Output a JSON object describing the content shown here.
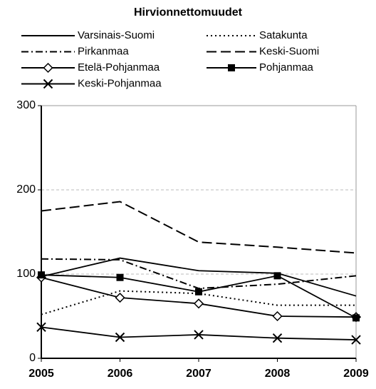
{
  "chart_data": {
    "type": "line",
    "title": "Hirvionnettomuudet",
    "x": [
      2005,
      2006,
      2007,
      2008,
      2009
    ],
    "xlim": [
      2005,
      2009
    ],
    "xticks": [
      2005,
      2006,
      2007,
      2008,
      2009
    ],
    "ylim": [
      0,
      300
    ],
    "yticks": [
      0,
      100,
      200,
      300
    ],
    "grid": true,
    "series": [
      {
        "name": "Varsinais-Suomi",
        "color": "#000000",
        "dash": "",
        "marker": "none",
        "values": [
          97,
          119,
          104,
          101,
          74
        ]
      },
      {
        "name": "Satakunta",
        "color": "#000000",
        "dash": "2,4",
        "marker": "none",
        "values": [
          52,
          80,
          77,
          63,
          63
        ]
      },
      {
        "name": "Pirkanmaa",
        "color": "#000000",
        "dash": "10,4,2,4",
        "marker": "none",
        "values": [
          118,
          117,
          83,
          88,
          98
        ]
      },
      {
        "name": "Keski-Suomi",
        "color": "#000000",
        "dash": "14,6",
        "marker": "none",
        "values": [
          175,
          186,
          138,
          132,
          125
        ]
      },
      {
        "name": "Etelä-Pohjanmaa",
        "color": "#000000",
        "dash": "",
        "marker": "diamond",
        "values": [
          96,
          72,
          65,
          50,
          49
        ]
      },
      {
        "name": "Pohjanmaa",
        "color": "#000000",
        "dash": "",
        "marker": "square",
        "values": [
          99,
          96,
          79,
          98,
          48
        ]
      },
      {
        "name": "Keski-Pohjanmaa",
        "color": "#000000",
        "dash": "",
        "marker": "x",
        "values": [
          37,
          25,
          28,
          24,
          22
        ]
      }
    ]
  }
}
